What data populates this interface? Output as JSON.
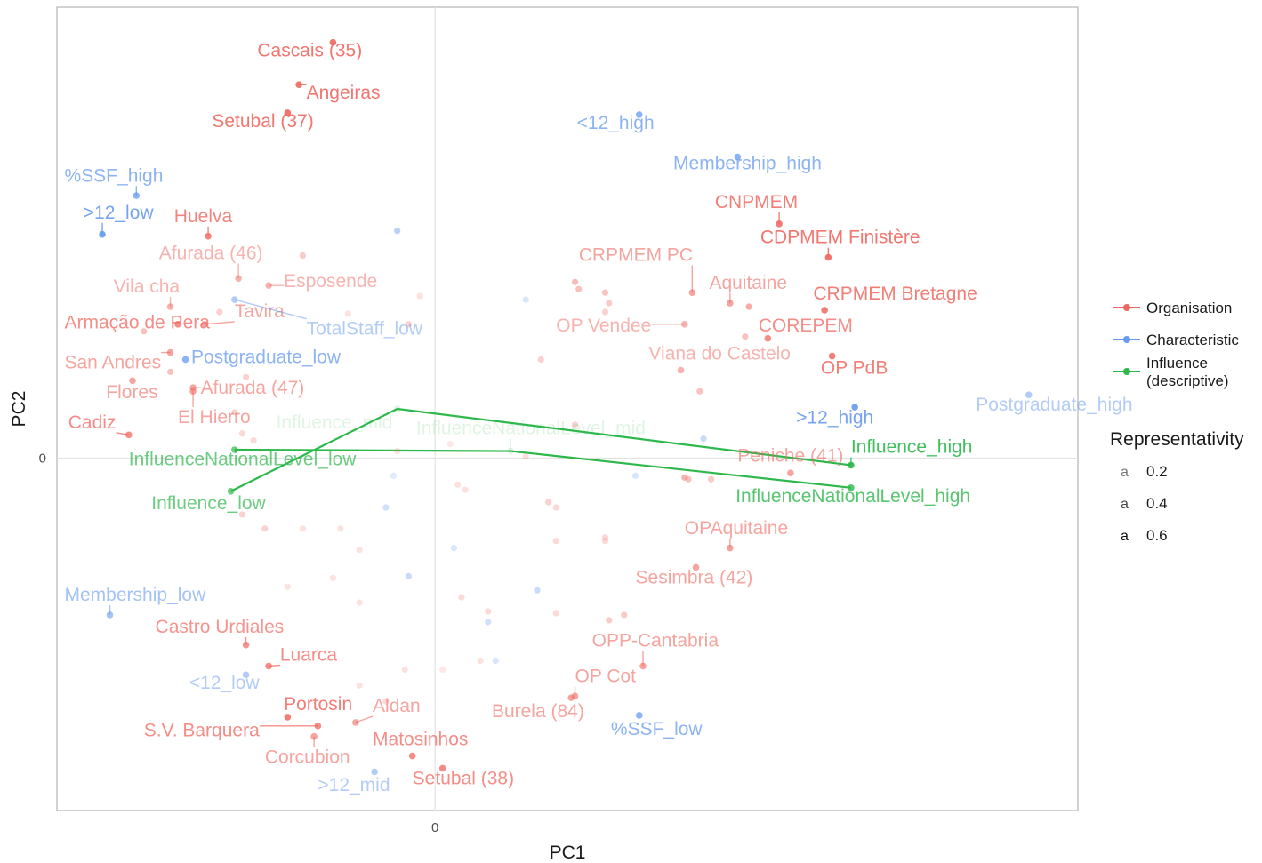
{
  "chart_data": {
    "type": "scatter",
    "xlabel": "PC1",
    "ylabel": "PC2",
    "xlim": [
      -1.0,
      1.7
    ],
    "ylim": [
      -1.0,
      1.28
    ],
    "x_ticks": [
      {
        "value": 0,
        "label": "0"
      }
    ],
    "y_ticks": [
      {
        "value": 0,
        "label": "0"
      }
    ],
    "grid": true,
    "legend_position": "right",
    "colors": {
      "Organisation": "#f0675f",
      "Characteristic": "#6699f0",
      "Influence (descriptive)": "#2db84b"
    },
    "legend_groups": [
      {
        "name": "Organisation",
        "label": "Organisation"
      },
      {
        "name": "Characteristic",
        "label": "Characteristic"
      },
      {
        "name": "Influence (descriptive)",
        "label": "Influence",
        "label2": "(descriptive)"
      }
    ],
    "size_legend": {
      "title": "Representativity",
      "levels": [
        {
          "value": 0.2,
          "label": "0.2"
        },
        {
          "value": 0.4,
          "label": "0.4"
        },
        {
          "value": 0.6,
          "label": "0.6"
        }
      ]
    },
    "influence_lines": [
      {
        "points": [
          [
            -0.54,
            -0.094
          ],
          [
            -0.1,
            0.14
          ],
          [
            1.1,
            -0.02
          ]
        ]
      },
      {
        "points": [
          [
            -0.53,
            0.024
          ],
          [
            0.2,
            0.02
          ],
          [
            1.1,
            -0.084
          ]
        ]
      }
    ],
    "labeled_points": [
      {
        "group": "Organisation",
        "label": "Cascais (35)",
        "x": -0.27,
        "y": 1.18,
        "alpha": 0.9,
        "lx": -0.47,
        "ly": 1.14
      },
      {
        "group": "Organisation",
        "label": "Angeiras",
        "x": -0.36,
        "y": 1.06,
        "alpha": 0.9,
        "lx": -0.34,
        "ly": 1.02
      },
      {
        "group": "Organisation",
        "label": "Setubal (37)",
        "x": -0.39,
        "y": 0.98,
        "alpha": 0.9,
        "lx": -0.59,
        "ly": 0.94
      },
      {
        "group": "Characteristic",
        "label": "%SSF_high",
        "x": -0.79,
        "y": 0.745,
        "alpha": 0.75,
        "lx": -0.98,
        "ly": 0.785
      },
      {
        "group": "Characteristic",
        "label": "&gt;12_low",
        "x": -0.88,
        "y": 0.635,
        "alpha": 0.9,
        "lx": -0.93,
        "ly": 0.68
      },
      {
        "group": "Organisation",
        "label": "Huelva",
        "x": -0.6,
        "y": 0.63,
        "alpha": 0.8,
        "lx": -0.69,
        "ly": 0.67
      },
      {
        "group": "Organisation",
        "label": "Afurada (46)",
        "x": -0.52,
        "y": 0.51,
        "alpha": 0.5,
        "lx": -0.73,
        "ly": 0.565
      },
      {
        "group": "Organisation",
        "label": "Esposende",
        "x": -0.44,
        "y": 0.49,
        "alpha": 0.5,
        "lx": -0.4,
        "ly": 0.485
      },
      {
        "group": "Organisation",
        "label": "Vila cha",
        "x": -0.7,
        "y": 0.43,
        "alpha": 0.5,
        "lx": -0.85,
        "ly": 0.47
      },
      {
        "group": "Organisation",
        "label": "Tavira",
        "x": -0.61,
        "y": 0.38,
        "alpha": 0.6,
        "lx": -0.53,
        "ly": 0.4
      },
      {
        "group": "Characteristic",
        "label": "TotalStaff_low",
        "x": -0.53,
        "y": 0.45,
        "alpha": 0.5,
        "lx": -0.34,
        "ly": 0.35
      },
      {
        "group": "Organisation",
        "label": "Armação de Pera",
        "x": -0.68,
        "y": 0.38,
        "alpha": 0.75,
        "lx": -0.98,
        "ly": 0.368
      },
      {
        "group": "Organisation",
        "label": "San Andres",
        "x": -0.7,
        "y": 0.3,
        "alpha": 0.6,
        "lx": -0.98,
        "ly": 0.255
      },
      {
        "group": "Characteristic",
        "label": "Postgraduate_low",
        "x": -0.66,
        "y": 0.28,
        "alpha": 0.75,
        "lx": -0.645,
        "ly": 0.27
      },
      {
        "group": "Organisation",
        "label": "Flores",
        "x": -0.8,
        "y": 0.22,
        "alpha": 0.6,
        "lx": -0.87,
        "ly": 0.17
      },
      {
        "group": "Organisation",
        "label": "Afurada (47)",
        "x": -0.64,
        "y": 0.2,
        "alpha": 0.6,
        "lx": -0.62,
        "ly": 0.183
      },
      {
        "group": "Organisation",
        "label": "El Hierro",
        "x": -0.64,
        "y": 0.19,
        "alpha": 0.6,
        "lx": -0.68,
        "ly": 0.1
      },
      {
        "group": "Organisation",
        "label": "Cadiz",
        "x": -0.81,
        "y": 0.066,
        "alpha": 0.75,
        "lx": -0.97,
        "ly": 0.085
      },
      {
        "group": "Influence (descriptive)",
        "label": "Influence_mid",
        "x": -0.1,
        "y": 0.14,
        "alpha": 0.15,
        "lx": -0.42,
        "ly": 0.085
      },
      {
        "group": "Influence (descriptive)",
        "label": "InfluenceNationalLevel_mid",
        "x": 0.2,
        "y": 0.02,
        "alpha": 0.15,
        "lx": -0.05,
        "ly": 0.068
      },
      {
        "group": "Influence (descriptive)",
        "label": "InfluenceNationalLevel_low",
        "x": -0.53,
        "y": 0.024,
        "alpha": 0.7,
        "lx": -0.81,
        "ly": -0.02
      },
      {
        "group": "Influence (descriptive)",
        "label": "Influence_low",
        "x": -0.54,
        "y": -0.094,
        "alpha": 0.7,
        "lx": -0.75,
        "ly": -0.145
      },
      {
        "group": "Characteristic",
        "label": "&lt;12_high",
        "x": 0.54,
        "y": 0.975,
        "alpha": 0.75,
        "lx": 0.375,
        "ly": 0.935
      },
      {
        "group": "Characteristic",
        "label": "Membership_high",
        "x": 0.8,
        "y": 0.855,
        "alpha": 0.75,
        "lx": 0.63,
        "ly": 0.82
      },
      {
        "group": "Organisation",
        "label": "CNPMEM",
        "x": 0.91,
        "y": 0.665,
        "alpha": 0.85,
        "lx": 0.74,
        "ly": 0.71
      },
      {
        "group": "Organisation",
        "label": "CDPMEM Finistère",
        "x": 1.04,
        "y": 0.57,
        "alpha": 0.9,
        "lx": 0.86,
        "ly": 0.61
      },
      {
        "group": "Organisation",
        "label": "CRPMEM PC",
        "x": 0.68,
        "y": 0.47,
        "alpha": 0.6,
        "lx": 0.38,
        "ly": 0.56
      },
      {
        "group": "Organisation",
        "label": "Aquitaine",
        "x": 0.78,
        "y": 0.44,
        "alpha": 0.6,
        "lx": 0.725,
        "ly": 0.48
      },
      {
        "group": "Organisation",
        "label": "CRPMEM Bretagne",
        "x": 1.03,
        "y": 0.42,
        "alpha": 0.85,
        "lx": 1.0,
        "ly": 0.45
      },
      {
        "group": "Organisation",
        "label": "OP Vendee",
        "x": 0.66,
        "y": 0.38,
        "alpha": 0.5,
        "lx": 0.32,
        "ly": 0.36
      },
      {
        "group": "Organisation",
        "label": "COREPEM",
        "x": 0.88,
        "y": 0.34,
        "alpha": 0.75,
        "lx": 0.855,
        "ly": 0.36
      },
      {
        "group": "Organisation",
        "label": "Viana do Castelo",
        "x": 0.65,
        "y": 0.25,
        "alpha": 0.5,
        "lx": 0.565,
        "ly": 0.28
      },
      {
        "group": "Organisation",
        "label": "OP PdB",
        "x": 1.05,
        "y": 0.29,
        "alpha": 0.85,
        "lx": 1.02,
        "ly": 0.24
      },
      {
        "group": "Characteristic",
        "label": "&gt;12_high",
        "x": 1.11,
        "y": 0.145,
        "alpha": 0.9,
        "lx": 0.955,
        "ly": 0.098
      },
      {
        "group": "Characteristic",
        "label": "Postgraduate_high",
        "x": 1.57,
        "y": 0.18,
        "alpha": 0.5,
        "lx": 1.43,
        "ly": 0.135
      },
      {
        "group": "Influence (descriptive)",
        "label": "Influence_high",
        "x": 1.1,
        "y": -0.02,
        "alpha": 0.9,
        "lx": 1.1,
        "ly": 0.015
      },
      {
        "group": "Organisation",
        "label": "Peniche (41)",
        "x": 0.94,
        "y": -0.042,
        "alpha": 0.6,
        "lx": 0.8,
        "ly": -0.01
      },
      {
        "group": "Influence (descriptive)",
        "label": "InfluenceNationalLevel_high",
        "x": 1.1,
        "y": -0.084,
        "alpha": 0.8,
        "lx": 0.795,
        "ly": -0.125
      },
      {
        "group": "Organisation",
        "label": "OPAquitaine",
        "x": 0.78,
        "y": -0.255,
        "alpha": 0.6,
        "lx": 0.66,
        "ly": -0.215
      },
      {
        "group": "Organisation",
        "label": "Sesimbra (42)",
        "x": 0.69,
        "y": -0.31,
        "alpha": 0.6,
        "lx": 0.53,
        "ly": -0.355
      },
      {
        "group": "Characteristic",
        "label": "Membership_low",
        "x": -0.86,
        "y": -0.445,
        "alpha": 0.6,
        "lx": -0.98,
        "ly": -0.405
      },
      {
        "group": "Organisation",
        "label": "Castro Urdiales",
        "x": -0.5,
        "y": -0.53,
        "alpha": 0.7,
        "lx": -0.74,
        "ly": -0.495
      },
      {
        "group": "Organisation",
        "label": "Luarca",
        "x": -0.44,
        "y": -0.59,
        "alpha": 0.75,
        "lx": -0.41,
        "ly": -0.575
      },
      {
        "group": "Organisation",
        "label": "OPP-Cantabria",
        "x": 0.55,
        "y": -0.59,
        "alpha": 0.6,
        "lx": 0.415,
        "ly": -0.535
      },
      {
        "group": "Characteristic",
        "label": "&lt;12_low",
        "x": -0.5,
        "y": -0.615,
        "alpha": 0.5,
        "lx": -0.65,
        "ly": -0.655
      },
      {
        "group": "Organisation",
        "label": "OP Cot",
        "x": 0.37,
        "y": -0.675,
        "alpha": 0.6,
        "lx": 0.37,
        "ly": -0.635
      },
      {
        "group": "Organisation",
        "label": "Portosin",
        "x": -0.39,
        "y": -0.735,
        "alpha": 0.85,
        "lx": -0.4,
        "ly": -0.715
      },
      {
        "group": "Organisation",
        "label": "Aldan",
        "x": -0.21,
        "y": -0.75,
        "alpha": 0.6,
        "lx": -0.165,
        "ly": -0.72
      },
      {
        "group": "Organisation",
        "label": "Burela (84)",
        "x": 0.36,
        "y": -0.68,
        "alpha": 0.6,
        "lx": 0.15,
        "ly": -0.735
      },
      {
        "group": "Characteristic",
        "label": "%SSF_low",
        "x": 0.54,
        "y": -0.73,
        "alpha": 0.75,
        "lx": 0.465,
        "ly": -0.785
      },
      {
        "group": "Organisation",
        "label": "S.V. Barquera",
        "x": -0.31,
        "y": -0.76,
        "alpha": 0.75,
        "lx": -0.77,
        "ly": -0.79
      },
      {
        "group": "Organisation",
        "label": "Matosinhos",
        "x": -0.06,
        "y": -0.845,
        "alpha": 0.75,
        "lx": -0.165,
        "ly": -0.815
      },
      {
        "group": "Organisation",
        "label": "Corcubion",
        "x": -0.32,
        "y": -0.79,
        "alpha": 0.6,
        "lx": -0.45,
        "ly": -0.865
      },
      {
        "group": "Characteristic",
        "label": "&gt;12_mid",
        "x": -0.16,
        "y": -0.89,
        "alpha": 0.5,
        "lx": -0.31,
        "ly": -0.945
      },
      {
        "group": "Organisation",
        "label": "Setubal (38)",
        "x": 0.02,
        "y": -0.88,
        "alpha": 0.75,
        "lx": -0.06,
        "ly": -0.925
      }
    ],
    "extra_points": [
      {
        "group": "Characteristic",
        "x": -0.1,
        "y": 0.645,
        "alpha": 0.45
      },
      {
        "group": "Characteristic",
        "x": 0.24,
        "y": 0.45,
        "alpha": 0.25
      },
      {
        "group": "Characteristic",
        "x": 0.71,
        "y": 0.055,
        "alpha": 0.35
      },
      {
        "group": "Characteristic",
        "x": 0.53,
        "y": -0.05,
        "alpha": 0.25
      },
      {
        "group": "Characteristic",
        "x": -0.13,
        "y": -0.14,
        "alpha": 0.3
      },
      {
        "group": "Characteristic",
        "x": -0.07,
        "y": -0.335,
        "alpha": 0.35
      },
      {
        "group": "Characteristic",
        "x": 0.27,
        "y": -0.375,
        "alpha": 0.35
      },
      {
        "group": "Characteristic",
        "x": 0.14,
        "y": -0.465,
        "alpha": 0.3
      },
      {
        "group": "Characteristic",
        "x": 0.16,
        "y": -0.575,
        "alpha": 0.25
      },
      {
        "group": "Characteristic",
        "x": -0.11,
        "y": -0.05,
        "alpha": 0.2
      },
      {
        "group": "Characteristic",
        "x": 0.05,
        "y": -0.255,
        "alpha": 0.25
      },
      {
        "group": "Organisation",
        "x": -0.35,
        "y": 0.575,
        "alpha": 0.35
      },
      {
        "group": "Organisation",
        "x": -0.04,
        "y": 0.46,
        "alpha": 0.2
      },
      {
        "group": "Organisation",
        "x": -0.23,
        "y": 0.41,
        "alpha": 0.2
      },
      {
        "group": "Organisation",
        "x": -0.07,
        "y": 0.38,
        "alpha": 0.3
      },
      {
        "group": "Organisation",
        "x": -0.57,
        "y": 0.415,
        "alpha": 0.3
      },
      {
        "group": "Organisation",
        "x": -0.77,
        "y": 0.36,
        "alpha": 0.4
      },
      {
        "group": "Organisation",
        "x": -0.5,
        "y": 0.23,
        "alpha": 0.3
      },
      {
        "group": "Organisation",
        "x": -0.53,
        "y": 0.13,
        "alpha": 0.3
      },
      {
        "group": "Organisation",
        "x": -0.51,
        "y": 0.07,
        "alpha": 0.25
      },
      {
        "group": "Organisation",
        "x": -0.48,
        "y": 0.05,
        "alpha": 0.25
      },
      {
        "group": "Organisation",
        "x": -0.1,
        "y": 0.02,
        "alpha": 0.2
      },
      {
        "group": "Organisation",
        "x": 0.04,
        "y": 0.04,
        "alpha": 0.15
      },
      {
        "group": "Organisation",
        "x": 0.24,
        "y": 0.005,
        "alpha": 0.2
      },
      {
        "group": "Organisation",
        "x": 0.28,
        "y": 0.28,
        "alpha": 0.3
      },
      {
        "group": "Organisation",
        "x": 0.37,
        "y": 0.5,
        "alpha": 0.45
      },
      {
        "group": "Organisation",
        "x": 0.38,
        "y": 0.48,
        "alpha": 0.4
      },
      {
        "group": "Organisation",
        "x": 0.45,
        "y": 0.47,
        "alpha": 0.4
      },
      {
        "group": "Organisation",
        "x": 0.46,
        "y": 0.44,
        "alpha": 0.35
      },
      {
        "group": "Organisation",
        "x": 0.45,
        "y": 0.415,
        "alpha": 0.3
      },
      {
        "group": "Organisation",
        "x": 0.83,
        "y": 0.43,
        "alpha": 0.55
      },
      {
        "group": "Organisation",
        "x": 0.82,
        "y": 0.345,
        "alpha": 0.4
      },
      {
        "group": "Organisation",
        "x": 0.7,
        "y": 0.19,
        "alpha": 0.4
      },
      {
        "group": "Organisation",
        "x": 0.37,
        "y": 0.095,
        "alpha": 0.3
      },
      {
        "group": "Organisation",
        "x": 0.66,
        "y": -0.055,
        "alpha": 0.5
      },
      {
        "group": "Organisation",
        "x": 0.67,
        "y": -0.06,
        "alpha": 0.4
      },
      {
        "group": "Organisation",
        "x": 0.73,
        "y": -0.06,
        "alpha": 0.35
      },
      {
        "group": "Organisation",
        "x": 0.3,
        "y": -0.125,
        "alpha": 0.3
      },
      {
        "group": "Organisation",
        "x": 0.32,
        "y": -0.14,
        "alpha": 0.25
      },
      {
        "group": "Organisation",
        "x": 0.06,
        "y": -0.075,
        "alpha": 0.2
      },
      {
        "group": "Organisation",
        "x": 0.08,
        "y": -0.09,
        "alpha": 0.2
      },
      {
        "group": "Organisation",
        "x": -0.35,
        "y": -0.2,
        "alpha": 0.2
      },
      {
        "group": "Organisation",
        "x": -0.25,
        "y": -0.2,
        "alpha": 0.2
      },
      {
        "group": "Organisation",
        "x": -0.45,
        "y": -0.2,
        "alpha": 0.3
      },
      {
        "group": "Organisation",
        "x": -0.51,
        "y": -0.16,
        "alpha": 0.3
      },
      {
        "group": "Organisation",
        "x": -0.2,
        "y": -0.26,
        "alpha": 0.2
      },
      {
        "group": "Organisation",
        "x": 0.32,
        "y": -0.235,
        "alpha": 0.25
      },
      {
        "group": "Organisation",
        "x": 0.45,
        "y": -0.225,
        "alpha": 0.25
      },
      {
        "group": "Organisation",
        "x": 0.45,
        "y": -0.235,
        "alpha": 0.25
      },
      {
        "group": "Organisation",
        "x": -0.39,
        "y": -0.365,
        "alpha": 0.2
      },
      {
        "group": "Organisation",
        "x": -0.27,
        "y": -0.34,
        "alpha": 0.2
      },
      {
        "group": "Organisation",
        "x": -0.2,
        "y": -0.41,
        "alpha": 0.2
      },
      {
        "group": "Organisation",
        "x": 0.07,
        "y": -0.395,
        "alpha": 0.25
      },
      {
        "group": "Organisation",
        "x": 0.14,
        "y": -0.435,
        "alpha": 0.25
      },
      {
        "group": "Organisation",
        "x": 0.32,
        "y": -0.44,
        "alpha": 0.25
      },
      {
        "group": "Organisation",
        "x": 0.5,
        "y": -0.445,
        "alpha": 0.35
      },
      {
        "group": "Organisation",
        "x": 0.46,
        "y": -0.46,
        "alpha": 0.35
      },
      {
        "group": "Organisation",
        "x": 0.12,
        "y": -0.575,
        "alpha": 0.2
      },
      {
        "group": "Organisation",
        "x": -0.08,
        "y": -0.6,
        "alpha": 0.2
      },
      {
        "group": "Organisation",
        "x": 0.02,
        "y": -0.6,
        "alpha": 0.15
      },
      {
        "group": "Organisation",
        "x": -0.2,
        "y": -0.645,
        "alpha": 0.2
      },
      {
        "group": "Organisation",
        "x": -0.13,
        "y": -0.69,
        "alpha": 0.25
      },
      {
        "group": "Organisation",
        "x": -0.7,
        "y": 0.245,
        "alpha": 0.4
      }
    ]
  }
}
